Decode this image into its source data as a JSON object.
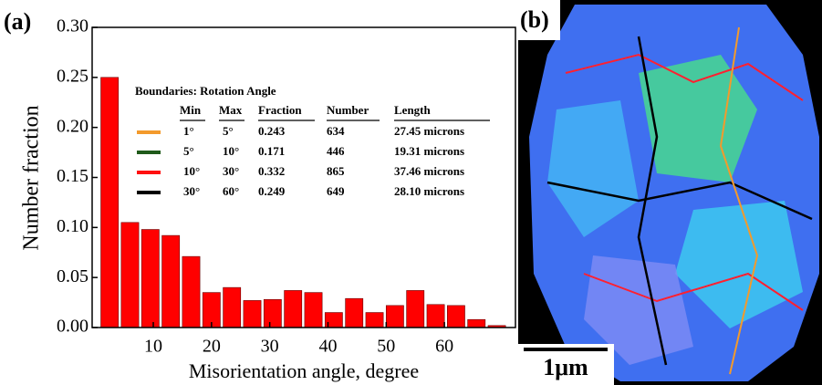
{
  "chart_data": {
    "type": "bar",
    "panel_label": "(a)",
    "x_label": "Misorientation angle, degree",
    "y_label": "Number fraction",
    "x": [
      2.5,
      6,
      9.5,
      13,
      16.5,
      20,
      23.5,
      27,
      30.5,
      34,
      37.5,
      41,
      44.5,
      48,
      51.5,
      55,
      58.5,
      62,
      65.5,
      69
    ],
    "values": [
      0.25,
      0.105,
      0.098,
      0.092,
      0.071,
      0.035,
      0.04,
      0.027,
      0.028,
      0.037,
      0.035,
      0.015,
      0.029,
      0.015,
      0.022,
      0.037,
      0.023,
      0.022,
      0.008,
      0.002
    ],
    "color": "#ff0000",
    "xlim": [
      -0.5,
      72.2
    ],
    "ylim": [
      0,
      0.3
    ],
    "xticks": [
      10,
      20,
      30,
      40,
      50,
      60
    ],
    "yticks": [
      {
        "value": 0,
        "label": "0.00"
      },
      0.05,
      {
        "value": 0.1,
        "label": "0.10"
      },
      0.15,
      {
        "value": 0.2,
        "label": "0.20"
      },
      0.25,
      {
        "value": 0.3,
        "label": "0.30"
      }
    ],
    "legend_table": {
      "title": "Boundaries: Rotation Angle",
      "columns": [
        "Min",
        "Max",
        "Fraction",
        "Number",
        "Length"
      ],
      "rows": [
        {
          "color": "#f39a2c",
          "cells": [
            "1°",
            "5°",
            "0.243",
            "634",
            "27.45 microns"
          ]
        },
        {
          "color": "#1f5a1a",
          "cells": [
            "5°",
            "10°",
            "0.171",
            "446",
            "19.31 microns"
          ]
        },
        {
          "color": "#ff1010",
          "cells": [
            "10°",
            "30°",
            "0.332",
            "865",
            "37.46 microns"
          ]
        },
        {
          "color": "#000000",
          "cells": [
            "30°",
            "60°",
            "0.249",
            "649",
            "28.10 microns"
          ]
        }
      ]
    }
  },
  "map_panel": {
    "panel_label": "(b)",
    "scale_bar": "1μm"
  }
}
